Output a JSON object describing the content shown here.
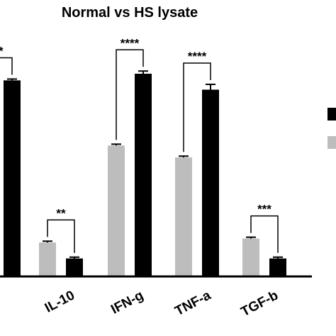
{
  "chart_data": {
    "type": "bar",
    "title": "Normal vs HS lysate",
    "categories": [
      "",
      "IL-10",
      "IFN-g",
      "TNF-a",
      "TGF-b"
    ],
    "series": [
      {
        "values": [
          null,
          0.25,
          0.98,
          0.89,
          0.28
        ],
        "errors": [
          null,
          0.01,
          0.01,
          0.01,
          0.01
        ],
        "color": "#bdbdbd"
      },
      {
        "values": [
          1.47,
          0.13,
          1.52,
          1.4,
          0.13
        ],
        "errors": [
          0.01,
          0.01,
          0.02,
          0.04,
          0.01
        ],
        "color": "#000000"
      }
    ],
    "significance": [
      "**",
      "**",
      "****",
      "****",
      "***"
    ],
    "ylim": [
      0,
      1.6
    ],
    "legend_colors": [
      "#000000",
      "#bdbdbd"
    ],
    "legend_placement": "right"
  }
}
